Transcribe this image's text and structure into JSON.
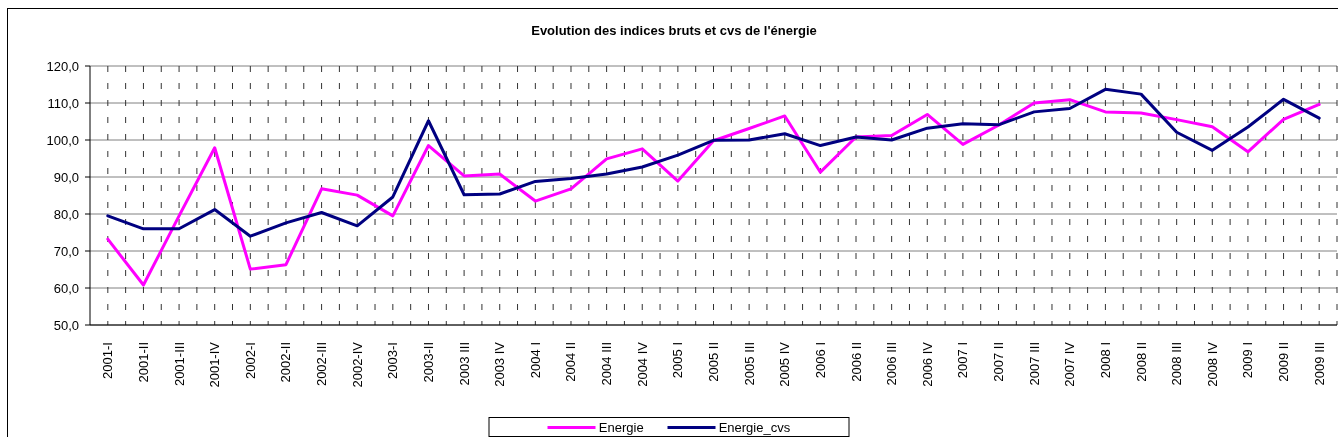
{
  "chart_data": {
    "type": "line",
    "title": "Evolution des indices bruts et cvs de l'énergie",
    "categories": [
      "2001-I",
      "2001-II",
      "2001-III",
      "2001-IV",
      "2002-I",
      "2002-II",
      "2002-III",
      "2002-IV",
      "2003-I",
      "2003-II",
      "2003 III",
      "2003 IV",
      "2004 I",
      "2004 II",
      "2004 III",
      "2004 IV",
      "2005 I",
      "2005 II",
      "2005 III",
      "2005 IV",
      "2006 I",
      "2006 II",
      "2006 III",
      "2006 IV",
      "2007 I",
      "2007 II",
      "2007 III",
      "2007 IV",
      "2008 I",
      "2008 II",
      "2008 III",
      "2008 IV",
      "2009 I",
      "2009 II",
      "2009 III"
    ],
    "series": [
      {
        "name": "Energie",
        "color": "#ff00ff",
        "values": [
          73.2,
          60.8,
          79.5,
          97.9,
          65.1,
          66.3,
          86.8,
          85.1,
          79.5,
          98.5,
          90.3,
          90.8,
          83.5,
          86.8,
          94.9,
          97.6,
          88.9,
          99.8,
          103.1,
          106.5,
          91.3,
          100.8,
          101.2,
          106.9,
          98.8,
          104.0,
          110.0,
          110.9,
          107.6,
          107.3,
          105.5,
          103.6,
          96.8,
          105.6,
          109.6
        ]
      },
      {
        "name": "Energie_cvs",
        "color": "#000080",
        "values": [
          79.5,
          76.0,
          76.0,
          81.2,
          74.0,
          77.6,
          80.4,
          76.8,
          84.6,
          105.2,
          85.2,
          85.4,
          88.8,
          89.6,
          90.8,
          92.7,
          95.9,
          99.9,
          100.0,
          101.7,
          98.5,
          100.8,
          100.0,
          103.2,
          104.4,
          104.1,
          107.6,
          108.5,
          113.7,
          112.4,
          102.1,
          97.2,
          103.5,
          111.0,
          105.9
        ]
      }
    ],
    "ylim": [
      50,
      120
    ],
    "yticks": [
      {
        "value": 50,
        "label": "50,0"
      },
      {
        "value": 60,
        "label": "60,0"
      },
      {
        "value": 70,
        "label": "70,0"
      },
      {
        "value": 80,
        "label": "80,0"
      },
      {
        "value": 90,
        "label": "90,0"
      },
      {
        "value": 100,
        "label": "100,0"
      },
      {
        "value": 110,
        "label": "110,0"
      },
      {
        "value": 120,
        "label": "120,0"
      }
    ],
    "grid": true,
    "legend": "bottom"
  }
}
